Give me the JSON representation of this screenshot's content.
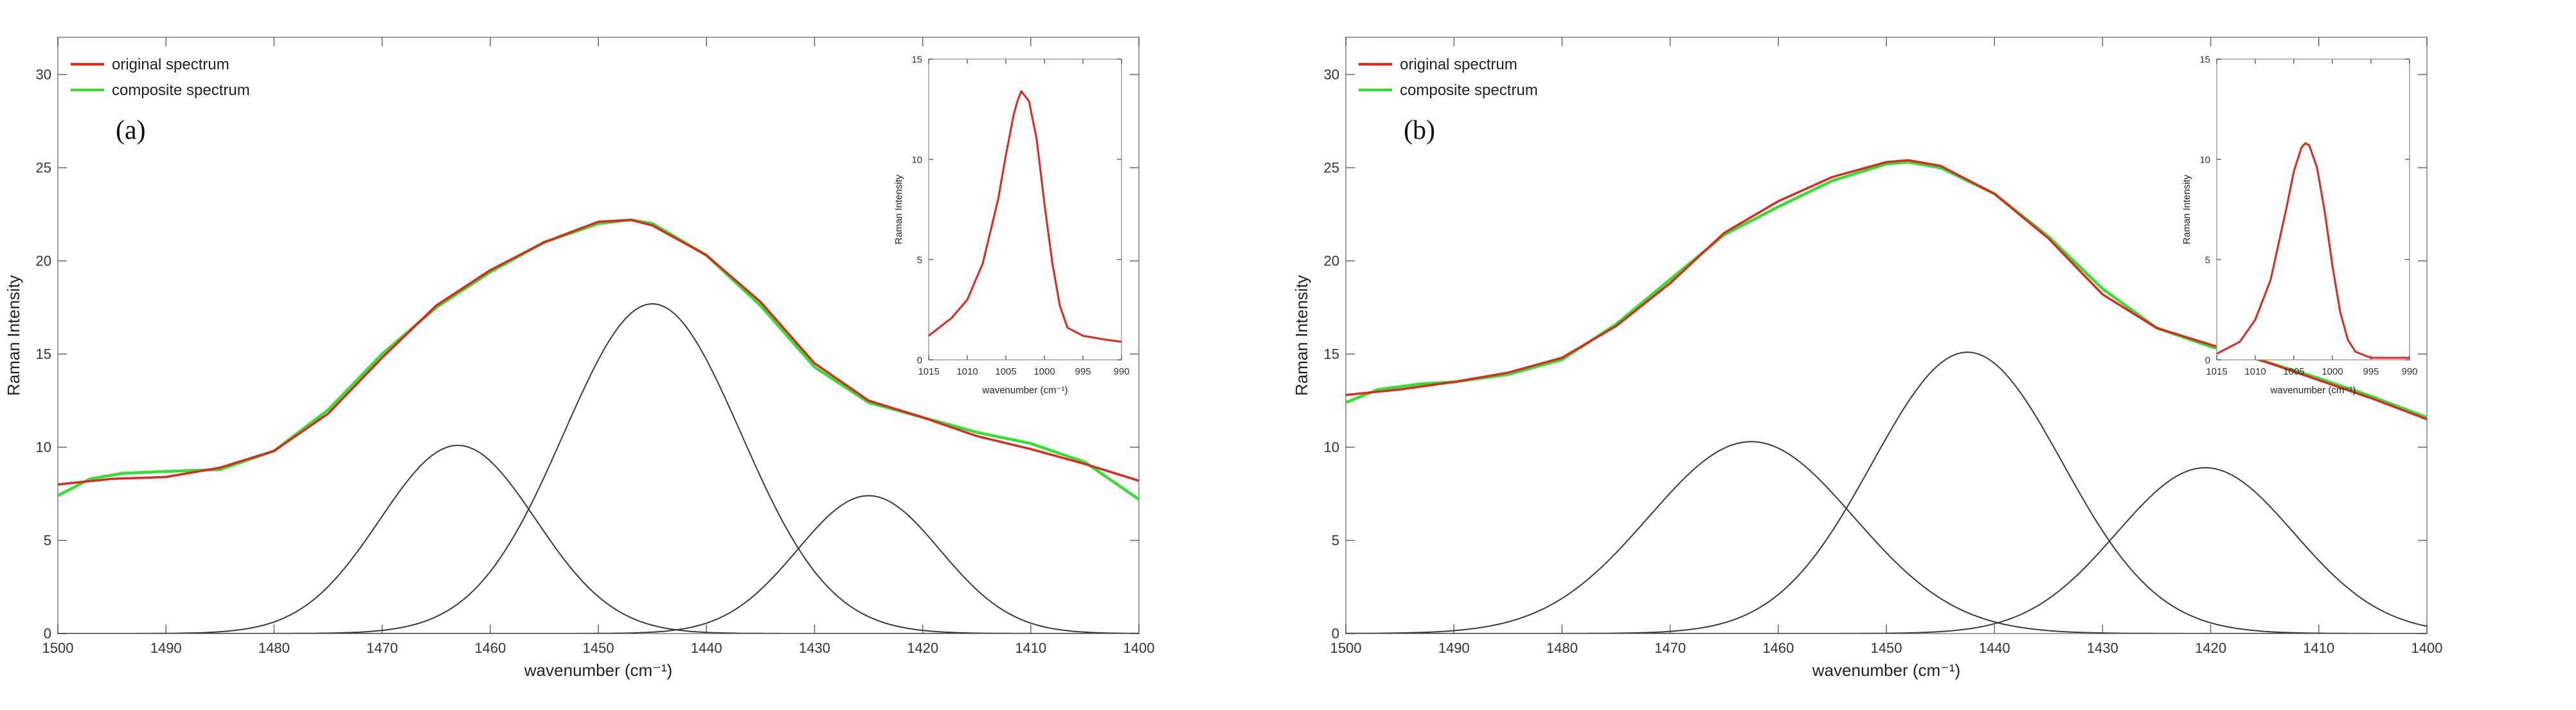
{
  "figure": {
    "panels": [
      "(a)",
      "(b)"
    ]
  },
  "colors": {
    "original": "#e0261e",
    "composite": "#2fe22f",
    "component": "#3a3a3a",
    "axis": "#555555"
  },
  "chart_data": [
    {
      "type": "line",
      "panel_label": "(a)",
      "xlabel": "wavenumber (cm⁻¹)",
      "ylabel": "Raman Intensity",
      "xlim": [
        1500,
        1400
      ],
      "ylim": [
        0,
        32
      ],
      "xticks": [
        1500,
        1490,
        1480,
        1470,
        1460,
        1450,
        1440,
        1430,
        1420,
        1410,
        1400
      ],
      "yticks": [
        0,
        5,
        10,
        15,
        20,
        25,
        30
      ],
      "legend": {
        "position": "top-left",
        "entries": [
          "original spectrum",
          "composite spectrum"
        ]
      },
      "series": [
        {
          "name": "original spectrum",
          "color": "#e0261e",
          "x": [
            1500,
            1495,
            1490,
            1485,
            1480,
            1475,
            1470,
            1465,
            1460,
            1455,
            1450,
            1447,
            1445,
            1440,
            1435,
            1430,
            1425,
            1420,
            1415,
            1410,
            1405,
            1400
          ],
          "y": [
            8.0,
            8.3,
            8.4,
            8.9,
            9.8,
            11.8,
            14.8,
            17.6,
            19.5,
            21.0,
            22.1,
            22.2,
            21.9,
            20.3,
            17.8,
            14.5,
            12.5,
            11.6,
            10.6,
            9.9,
            9.1,
            8.2
          ]
        },
        {
          "name": "composite spectrum",
          "color": "#2fe22f",
          "x": [
            1500,
            1497,
            1494,
            1490,
            1485,
            1480,
            1475,
            1470,
            1465,
            1460,
            1455,
            1450,
            1447,
            1445,
            1440,
            1435,
            1430,
            1425,
            1420,
            1415,
            1410,
            1405,
            1400
          ],
          "y": [
            7.4,
            8.3,
            8.6,
            8.7,
            8.8,
            9.8,
            12.0,
            15.0,
            17.5,
            19.4,
            21.0,
            22.0,
            22.2,
            22.0,
            20.3,
            17.6,
            14.3,
            12.4,
            11.6,
            10.8,
            10.2,
            9.2,
            7.2
          ]
        },
        {
          "name": "component 1",
          "gaussian": {
            "center": 1463,
            "amplitude": 10.1,
            "sigma": 7.2
          }
        },
        {
          "name": "component 2",
          "gaussian": {
            "center": 1445,
            "amplitude": 17.7,
            "sigma": 8.2
          }
        },
        {
          "name": "component 3",
          "gaussian": {
            "center": 1425,
            "amplitude": 7.4,
            "sigma": 6.6
          }
        }
      ],
      "inset": {
        "type": "line",
        "xlabel": "wavenumber (cm⁻¹)",
        "ylabel": "Raman Intensity",
        "xlim": [
          1015,
          990
        ],
        "ylim": [
          0,
          15
        ],
        "xticks": [
          1015,
          1010,
          1005,
          1000,
          995,
          990
        ],
        "yticks": [
          0,
          5,
          10,
          15
        ],
        "series": [
          {
            "name": "original spectrum",
            "color": "#e0261e",
            "x": [
              1015,
              1012,
              1010,
              1008,
              1006,
              1005,
              1004,
              1003.5,
              1003,
              1002,
              1001,
              1000,
              999,
              998,
              997,
              995,
              992,
              990
            ],
            "y": [
              1.2,
              2.1,
              3.0,
              4.8,
              8.0,
              10.2,
              12.2,
              12.9,
              13.4,
              12.9,
              11.0,
              7.8,
              4.9,
              2.7,
              1.6,
              1.2,
              1.0,
              0.9
            ]
          }
        ]
      }
    },
    {
      "type": "line",
      "panel_label": "(b)",
      "xlabel": "wavenumber (cm⁻¹)",
      "ylabel": "Raman Intensity",
      "xlim": [
        1500,
        1400
      ],
      "ylim": [
        0,
        32
      ],
      "xticks": [
        1500,
        1490,
        1480,
        1470,
        1460,
        1450,
        1440,
        1430,
        1420,
        1410,
        1400
      ],
      "yticks": [
        0,
        5,
        10,
        15,
        20,
        25,
        30
      ],
      "legend": {
        "position": "top-left",
        "entries": [
          "original spectrum",
          "composite spectrum"
        ]
      },
      "series": [
        {
          "name": "original spectrum",
          "color": "#e0261e",
          "x": [
            1500,
            1495,
            1490,
            1485,
            1480,
            1475,
            1470,
            1465,
            1460,
            1455,
            1450,
            1448,
            1445,
            1440,
            1435,
            1430,
            1425,
            1420,
            1415,
            1410,
            1405,
            1400
          ],
          "y": [
            12.8,
            13.1,
            13.5,
            14.0,
            14.8,
            16.5,
            18.8,
            21.5,
            23.2,
            24.5,
            25.3,
            25.4,
            25.1,
            23.6,
            21.2,
            18.2,
            16.4,
            15.5,
            14.6,
            13.6,
            12.6,
            11.5
          ]
        },
        {
          "name": "composite spectrum",
          "color": "#2fe22f",
          "x": [
            1500,
            1497,
            1493,
            1490,
            1485,
            1480,
            1475,
            1470,
            1465,
            1460,
            1455,
            1450,
            1448,
            1445,
            1440,
            1435,
            1430,
            1425,
            1420,
            1415,
            1410,
            1405,
            1400
          ],
          "y": [
            12.4,
            13.1,
            13.4,
            13.5,
            13.9,
            14.7,
            16.6,
            19.0,
            21.4,
            22.9,
            24.3,
            25.2,
            25.3,
            25.0,
            23.6,
            21.3,
            18.5,
            16.4,
            15.4,
            14.6,
            13.7,
            12.7,
            11.6
          ]
        },
        {
          "name": "component 1",
          "gaussian": {
            "center": 1462.5,
            "amplitude": 10.3,
            "sigma": 9.5
          }
        },
        {
          "name": "component 2",
          "gaussian": {
            "center": 1442.5,
            "amplitude": 15.1,
            "sigma": 8.8
          }
        },
        {
          "name": "component 3",
          "gaussian": {
            "center": 1420.5,
            "amplitude": 8.9,
            "sigma": 8.2
          }
        }
      ],
      "inset": {
        "type": "line",
        "xlabel": "wavenumber (cm⁻¹)",
        "ylabel": "Raman Intensity",
        "xlim": [
          1015,
          990
        ],
        "ylim": [
          0,
          15
        ],
        "xticks": [
          1015,
          1010,
          1005,
          1000,
          995,
          990
        ],
        "yticks": [
          0,
          5,
          10,
          15
        ],
        "series": [
          {
            "name": "original spectrum",
            "color": "#e0261e",
            "x": [
              1015,
              1012,
              1010,
              1008,
              1006,
              1005,
              1004,
              1003.5,
              1003,
              1002,
              1001,
              1000,
              999,
              998,
              997,
              995,
              992,
              990
            ],
            "y": [
              0.3,
              0.9,
              2.0,
              4.0,
              7.5,
              9.4,
              10.6,
              10.8,
              10.7,
              9.6,
              7.4,
              4.7,
              2.4,
              1.0,
              0.4,
              0.1,
              0.1,
              0.1
            ]
          }
        ]
      }
    }
  ]
}
